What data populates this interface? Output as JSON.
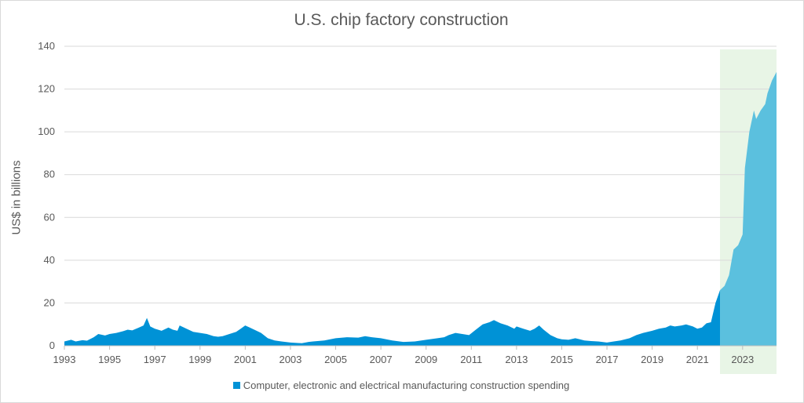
{
  "chart_data": {
    "type": "area",
    "title": "U.S. chip factory construction",
    "ylabel": "US$ in billions",
    "xlabel": "",
    "xlim": [
      1993,
      2024.5
    ],
    "ylim": [
      0,
      140
    ],
    "yticks": [
      0,
      20,
      40,
      60,
      80,
      100,
      120,
      140
    ],
    "xticks": [
      1993,
      1995,
      1997,
      1999,
      2001,
      2003,
      2005,
      2007,
      2009,
      2011,
      2013,
      2015,
      2017,
      2019,
      2021,
      2023
    ],
    "grid": "horizontal",
    "legend_position": "bottom",
    "highlight_range": [
      2022.0,
      2024.5
    ],
    "highlight_color": "#e8f5e6",
    "series": [
      {
        "name": "Computer, electronic and electrical manufacturing construction spending",
        "color": "#0092d6",
        "highlight_color": "#5bc0de",
        "x": [
          1993.0,
          1993.3,
          1993.5,
          1993.8,
          1994.0,
          1994.3,
          1994.5,
          1994.8,
          1995.0,
          1995.3,
          1995.6,
          1995.8,
          1996.0,
          1996.3,
          1996.5,
          1996.65,
          1996.8,
          1997.0,
          1997.3,
          1997.6,
          1997.8,
          1998.0,
          1998.1,
          1998.4,
          1998.7,
          1999.0,
          1999.3,
          1999.6,
          1999.8,
          2000.0,
          2000.3,
          2000.6,
          2000.8,
          2001.0,
          2001.2,
          2001.4,
          2001.7,
          2002.0,
          2002.3,
          2002.6,
          2003.0,
          2003.5,
          2003.8,
          2004.0,
          2004.5,
          2005.0,
          2005.5,
          2006.0,
          2006.3,
          2006.6,
          2007.0,
          2007.5,
          2008.0,
          2008.5,
          2009.0,
          2009.5,
          2009.8,
          2010.0,
          2010.3,
          2010.6,
          2010.9,
          2011.2,
          2011.5,
          2011.8,
          2012.0,
          2012.3,
          2012.6,
          2012.9,
          2013.0,
          2013.3,
          2013.6,
          2013.8,
          2014.0,
          2014.2,
          2014.5,
          2014.8,
          2015.0,
          2015.3,
          2015.6,
          2015.8,
          2016.0,
          2016.3,
          2016.6,
          2017.0,
          2017.3,
          2017.6,
          2018.0,
          2018.3,
          2018.6,
          2019.0,
          2019.3,
          2019.6,
          2019.8,
          2020.0,
          2020.3,
          2020.5,
          2020.8,
          2021.0,
          2021.2,
          2021.4,
          2021.6,
          2021.8,
          2022.0,
          2022.2,
          2022.4,
          2022.6,
          2022.8,
          2023.0,
          2023.1,
          2023.3,
          2023.5,
          2023.6,
          2023.8,
          2024.0,
          2024.1,
          2024.3,
          2024.5
        ],
        "values": [
          2.0,
          2.8,
          2.0,
          2.6,
          2.4,
          4.0,
          5.5,
          4.8,
          5.5,
          6.0,
          6.8,
          7.5,
          7.2,
          8.5,
          9.5,
          13.0,
          9.0,
          8.0,
          7.0,
          8.5,
          7.5,
          7.0,
          9.5,
          8.0,
          6.5,
          6.0,
          5.5,
          4.5,
          4.2,
          4.5,
          5.5,
          6.5,
          8.0,
          9.5,
          8.5,
          7.5,
          6.0,
          3.5,
          2.5,
          2.0,
          1.5,
          1.2,
          1.8,
          2.0,
          2.5,
          3.5,
          4.0,
          3.8,
          4.5,
          4.0,
          3.5,
          2.5,
          1.8,
          2.0,
          2.8,
          3.5,
          4.0,
          5.0,
          6.0,
          5.5,
          5.0,
          7.5,
          10.0,
          11.0,
          12.0,
          10.5,
          9.5,
          8.0,
          9.0,
          8.0,
          7.0,
          8.0,
          9.5,
          7.5,
          5.0,
          3.5,
          3.0,
          2.8,
          3.5,
          3.0,
          2.5,
          2.2,
          2.0,
          1.5,
          2.0,
          2.5,
          3.5,
          5.0,
          6.0,
          7.0,
          8.0,
          8.5,
          9.5,
          9.0,
          9.5,
          10.0,
          9.0,
          8.0,
          8.5,
          10.5,
          11.0,
          20.0,
          26.0,
          28.0,
          33.0,
          45.0,
          47.0,
          52.0,
          83.0,
          100.0,
          110.0,
          106.0,
          110.0,
          113.0,
          118.0,
          124.0,
          128.0
        ]
      }
    ]
  }
}
